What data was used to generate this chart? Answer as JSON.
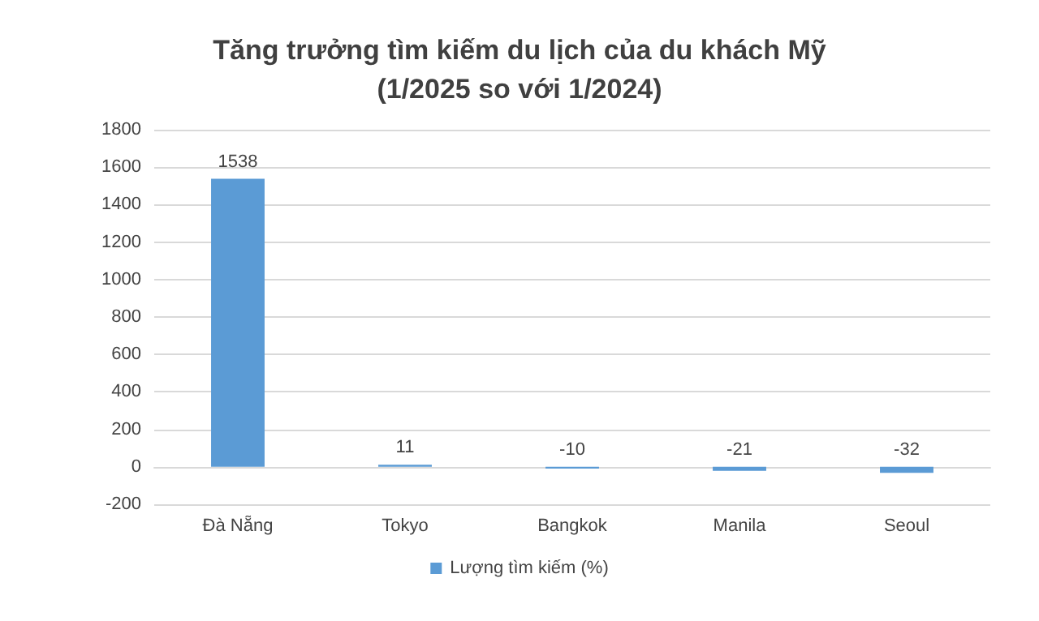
{
  "chart_data": {
    "type": "bar",
    "title": "Tăng trưởng tìm kiếm du lịch của du khách Mỹ\n(1/2025 so với 1/2024)",
    "categories": [
      "Đà Nẵng",
      "Tokyo",
      "Bangkok",
      "Manila",
      "Seoul"
    ],
    "series": [
      {
        "name": "Lượng tìm kiếm (%)",
        "color": "#5b9bd5",
        "values": [
          1538,
          11,
          -10,
          -21,
          -32
        ]
      }
    ],
    "ylim": [
      -200,
      1800
    ],
    "yticks": [
      -200,
      0,
      200,
      400,
      600,
      800,
      1000,
      1200,
      1400,
      1600,
      1800
    ],
    "grid": "y",
    "legend": "bottom",
    "data_labels": true
  }
}
